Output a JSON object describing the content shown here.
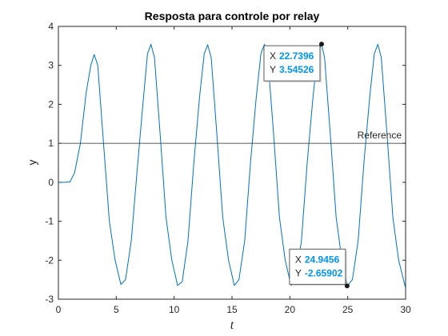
{
  "chart_data": {
    "type": "line",
    "title": "Resposta para controle por relay",
    "xlabel": "t",
    "ylabel": "y",
    "xlim": [
      0,
      30
    ],
    "ylim": [
      -3,
      4
    ],
    "xticks": [
      0,
      5,
      10,
      15,
      20,
      25,
      30
    ],
    "yticks": [
      -3,
      -2,
      -1,
      0,
      1,
      2,
      3,
      4
    ],
    "grid": false,
    "series": [
      {
        "color": "#0072bd",
        "x": [
          0,
          0.5,
          1.0,
          1.4,
          1.9,
          2.4,
          2.8,
          3.1,
          3.4,
          3.9,
          4.4,
          4.9,
          5.4,
          5.8,
          6.3,
          6.8,
          7.3,
          7.7,
          8.0,
          8.3,
          8.8,
          9.3,
          9.8,
          10.3,
          10.7,
          11.2,
          11.7,
          12.2,
          12.6,
          12.9,
          13.2,
          13.7,
          14.2,
          14.7,
          15.2,
          15.6,
          16.1,
          16.6,
          17.1,
          17.5,
          17.8,
          18.1,
          18.6,
          19.1,
          19.6,
          20.1,
          20.5,
          21.0,
          21.5,
          22.0,
          22.4,
          22.74,
          23.0,
          23.5,
          24.0,
          24.5,
          24.95,
          25.4,
          25.9,
          26.4,
          26.9,
          27.3,
          27.6,
          27.9,
          28.4,
          28.9,
          29.4,
          30.0
        ],
        "y": [
          0,
          0,
          0.01,
          0.25,
          1.0,
          2.3,
          3.0,
          3.28,
          3.0,
          1.0,
          -1.0,
          -2.0,
          -2.62,
          -2.5,
          -1.5,
          0.3,
          2.0,
          3.3,
          3.54,
          3.2,
          1.2,
          -0.9,
          -2.0,
          -2.65,
          -2.55,
          -1.5,
          0.5,
          2.2,
          3.3,
          3.53,
          3.2,
          1.2,
          -0.9,
          -2.0,
          -2.65,
          -2.5,
          -1.5,
          0.5,
          2.2,
          3.3,
          3.54,
          3.2,
          1.2,
          -0.9,
          -2.0,
          -2.65,
          -2.5,
          -1.5,
          0.5,
          2.2,
          3.3,
          3.545,
          3.2,
          1.2,
          -0.9,
          -2.0,
          -2.659,
          -2.5,
          -1.5,
          0.5,
          2.2,
          3.3,
          3.54,
          3.2,
          1.2,
          -0.9,
          -2.0,
          -2.72
        ]
      }
    ],
    "reference_line": {
      "y": 1,
      "label": "Reference",
      "color": "#262626"
    },
    "datatips": [
      {
        "x": 22.7396,
        "y": 3.54526,
        "x_text": "22.7396",
        "y_text": "3.54526",
        "x_key": "X",
        "y_key": "Y",
        "placement": "left-below"
      },
      {
        "x": 24.9456,
        "y": -2.65902,
        "x_text": "24.9456",
        "y_text": "-2.65902",
        "x_key": "X",
        "y_key": "Y",
        "placement": "left-above"
      }
    ]
  }
}
